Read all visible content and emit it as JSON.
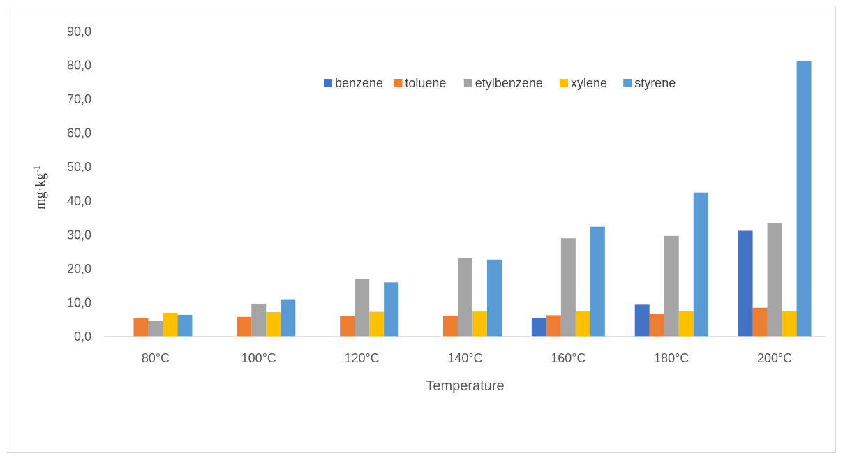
{
  "chart_data": {
    "type": "bar",
    "categories": [
      "80°C",
      "100°C",
      "120°C",
      "140°C",
      "160°C",
      "180°C",
      "200°C"
    ],
    "series": [
      {
        "name": "benzene",
        "color": "#4472c4",
        "values": [
          0,
          0,
          0,
          0,
          5.5,
          9.4,
          31.2
        ]
      },
      {
        "name": "toluene",
        "color": "#ed7d31",
        "values": [
          5.4,
          5.8,
          6.1,
          6.2,
          6.3,
          6.7,
          8.5
        ]
      },
      {
        "name": "etylbenzene",
        "color": "#a5a5a5",
        "values": [
          4.6,
          9.7,
          17.0,
          23.1,
          29.0,
          29.7,
          33.5
        ]
      },
      {
        "name": "xylene",
        "color": "#ffc000",
        "values": [
          7.0,
          7.2,
          7.3,
          7.4,
          7.4,
          7.4,
          7.5
        ]
      },
      {
        "name": "styrene",
        "color": "#5b9bd5",
        "values": [
          6.4,
          11.0,
          16.0,
          22.7,
          32.4,
          42.5,
          81.2
        ]
      }
    ],
    "yticks": [
      "0,0",
      "10,0",
      "20,0",
      "30,0",
      "40,0",
      "50,0",
      "60,0",
      "70,0",
      "80,0",
      "90,0"
    ],
    "ylim": [
      0,
      90
    ],
    "xlabel": "Temperature",
    "ylabel_base": "mg·kg",
    "ylabel_sup": "-1",
    "legend_position": "top-right",
    "grid": false
  }
}
